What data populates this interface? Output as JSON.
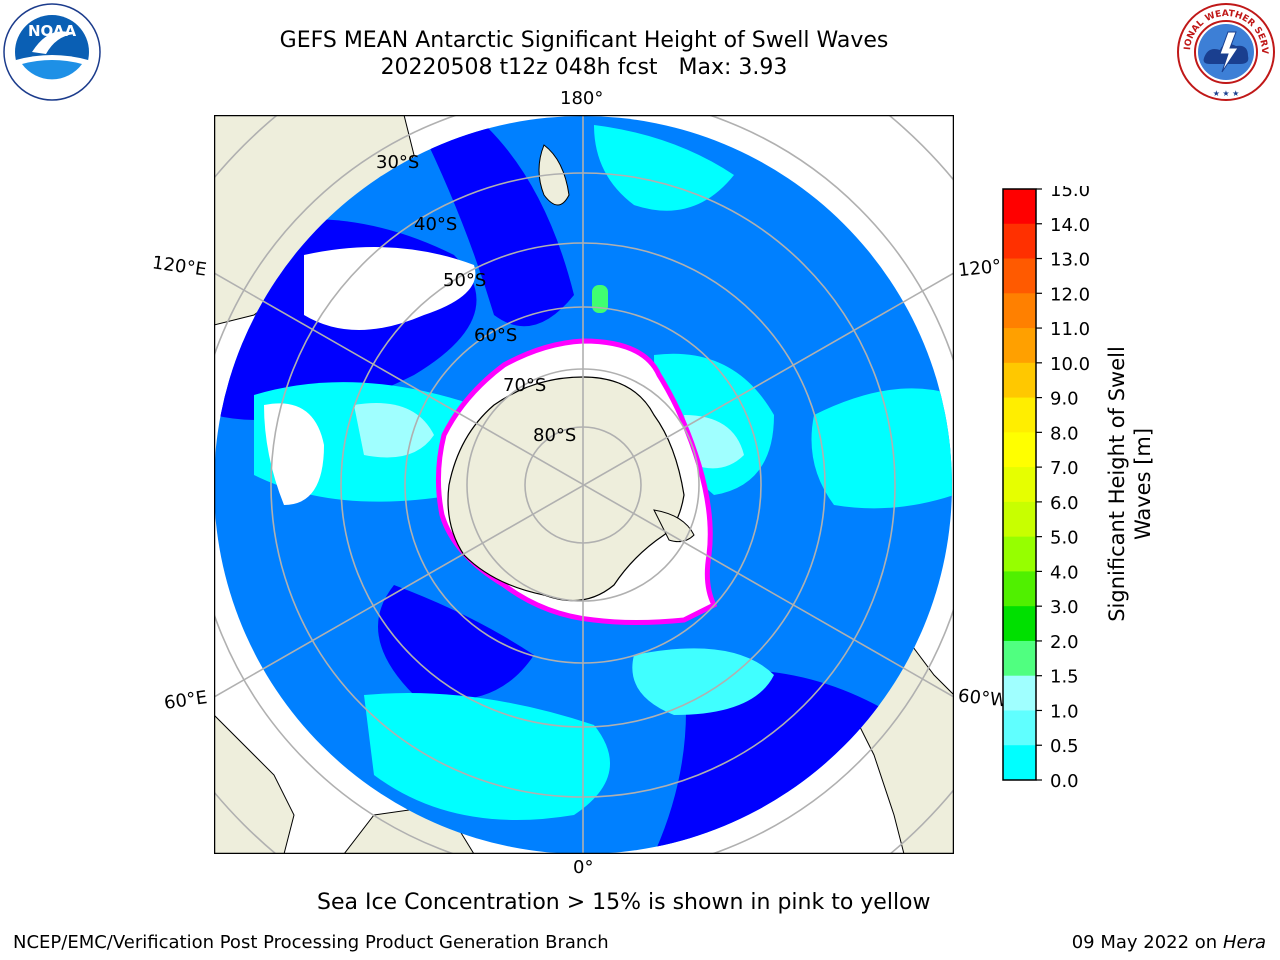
{
  "header": {
    "title": "GEFS MEAN Antarctic Significant Height of Swell Waves",
    "subtitle_run": "20220508 t12z 048h fcst",
    "subtitle_max": "Max: 3.93"
  },
  "logos": {
    "left": {
      "name": "NOAA",
      "text": "NOAA"
    },
    "right": {
      "name": "National Weather Service",
      "ring_text": "NATIONAL WEATHER SERVICE"
    }
  },
  "map": {
    "projection": "south-polar-stereographic",
    "lon_labels": {
      "top": "180°",
      "bottom": "0°",
      "upper_left": "120°E",
      "lower_left": "60°E",
      "upper_right": "120°",
      "lower_right": "60°W"
    },
    "lat_labels": [
      "30°S",
      "40°S",
      "50°S",
      "60°S",
      "70°S",
      "80°S"
    ],
    "colors": {
      "land": "#eeeedc",
      "ice": "#ffffff",
      "ocean_0_05": "#0000ff",
      "ocean_05_1": "#0080ff",
      "ocean_1_15": "#00ffff",
      "ocean_15_2": "#40ffff",
      "ocean_2_3": "#a0ffff",
      "ocean_3_4": "#40ff70",
      "ice_edge": "#ff00ff",
      "grid": "#b0b0b0"
    }
  },
  "colorbar": {
    "label_line1": "Significant Height of Swell",
    "label_line2": "Waves [m]",
    "ticks": [
      "15.0",
      "14.0",
      "13.0",
      "12.0",
      "11.0",
      "10.0",
      "9.0",
      "8.0",
      "7.0",
      "6.0",
      "5.0",
      "4.0",
      "3.0",
      "2.0",
      "1.5",
      "1.0",
      "0.5",
      "0.0"
    ],
    "segment_colors": [
      "#ff0000",
      "#ff3000",
      "#ff5a00",
      "#ff8000",
      "#ffa000",
      "#ffc800",
      "#ffee00",
      "#ffff00",
      "#e6ff00",
      "#c8ff00",
      "#96ff00",
      "#50f000",
      "#00e000",
      "#50ff80",
      "#a0ffff",
      "#60ffff",
      "#00ffff",
      "#0080ff",
      "#0000ff"
    ]
  },
  "footer": {
    "note": "Sea Ice Concentration > 15% is shown in pink to yellow",
    "left": "NCEP/EMC/Verification Post Processing Product Generation Branch",
    "right_date": "09 May 2022 on",
    "right_host": "Hera"
  }
}
